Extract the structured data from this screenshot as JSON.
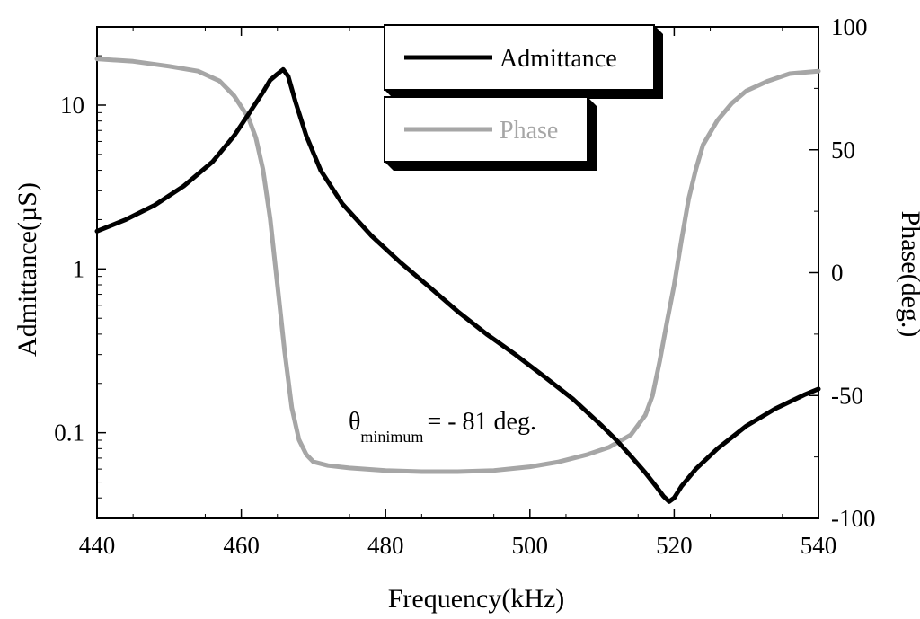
{
  "chart_data": {
    "type": "line",
    "xlabel": "Frequency(kHz)",
    "ylabel": "Admittance(µS)",
    "y2label": "Phase(deg.)",
    "xlim": [
      440,
      540
    ],
    "ylim": [
      0.03,
      30
    ],
    "yscale": "log",
    "y2lim": [
      -100,
      100
    ],
    "x_ticks": [
      "440",
      "460",
      "480",
      "500",
      "520",
      "540"
    ],
    "y_ticks": [
      "0.1",
      "1",
      "10"
    ],
    "y2_ticks": [
      "-100",
      "-50",
      "0",
      "50",
      "100"
    ],
    "legend_position": "top-center",
    "colors": {
      "admittance": "#000000",
      "phase": "#a6a6a6"
    },
    "annotation": {
      "symbol": "θ",
      "subscript": "minimum",
      "text": "= - 81 deg."
    },
    "series": [
      {
        "name": "Admittance",
        "axis": "left",
        "x": [
          440,
          444,
          448,
          452,
          456,
          459,
          461,
          463,
          464,
          465,
          465.8,
          466.5,
          467.5,
          469,
          471,
          474,
          478,
          482,
          486,
          490,
          494,
          498,
          502,
          506,
          510,
          512,
          514,
          516,
          517.5,
          518.5,
          519.3,
          520,
          521,
          523,
          526,
          530,
          534,
          538,
          540
        ],
        "values": [
          1.7,
          2.0,
          2.45,
          3.2,
          4.5,
          6.5,
          8.8,
          12,
          14.2,
          15.5,
          16.5,
          15,
          10.5,
          6.5,
          4.0,
          2.5,
          1.6,
          1.1,
          0.78,
          0.55,
          0.4,
          0.3,
          0.22,
          0.16,
          0.11,
          0.09,
          0.072,
          0.057,
          0.047,
          0.041,
          0.038,
          0.04,
          0.047,
          0.06,
          0.08,
          0.11,
          0.14,
          0.17,
          0.185
        ]
      },
      {
        "name": "Phase",
        "axis": "right",
        "x": [
          440,
          445,
          450,
          454,
          457,
          459,
          461,
          462,
          463,
          464,
          465,
          466,
          467,
          468,
          469,
          470,
          472,
          475,
          480,
          485,
          490,
          495,
          500,
          504,
          508,
          511,
          514,
          516,
          517,
          518,
          519,
          520,
          521,
          522,
          523,
          524,
          526,
          528,
          530,
          533,
          536,
          540
        ],
        "values": [
          87,
          86,
          84,
          82,
          78,
          72,
          63,
          55,
          42,
          22,
          -5,
          -32,
          -55,
          -68,
          -74,
          -77,
          -78.5,
          -79.5,
          -80.5,
          -81,
          -81,
          -80.5,
          -79,
          -77,
          -74,
          -71,
          -66,
          -58,
          -50,
          -36,
          -20,
          -5,
          13,
          30,
          42,
          52,
          62,
          69,
          74,
          78,
          81,
          82
        ]
      }
    ]
  }
}
